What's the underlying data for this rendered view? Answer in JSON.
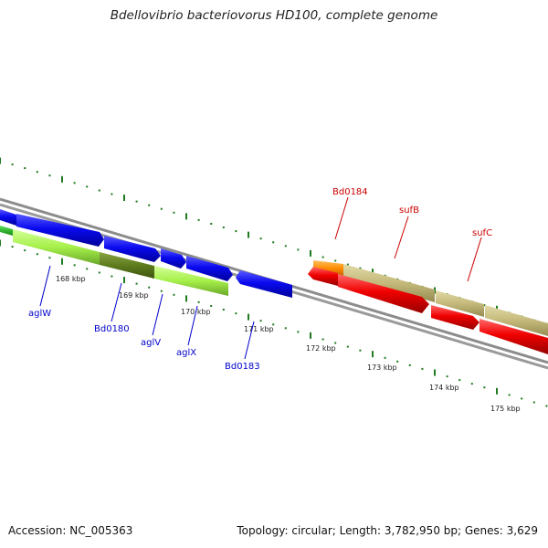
{
  "header": {
    "title": "Bdellovibrio bacteriovorus HD100, complete genome"
  },
  "footer": {
    "accession": "Accession: NC_005363",
    "genome_info": "Topology: circular; Length: 3,782,950 bp; Genes: 3,629"
  },
  "colors": {
    "backbone": "#8c8c8c",
    "ticks_major": "#1f7a1f",
    "forward_blue": "#0a0af0",
    "reverse_lime": "#a6f04a",
    "reverse_olive": "#5e7c1e",
    "orange": "#ff8c00",
    "tan": "#c4b97a",
    "red": "#f00000",
    "label_blue": "#0000cc",
    "label_red": "#cc0000"
  },
  "scale": {
    "unit": "kbp",
    "labels": [
      "168 kbp",
      "169 kbp",
      "170 kbp",
      "171 kbp",
      "172 kbp",
      "173 kbp",
      "174 kbp",
      "175 kbp"
    ]
  },
  "genes": {
    "labeled": [
      {
        "name": "aglW",
        "color": "blue"
      },
      {
        "name": "Bd0180",
        "color": "blue"
      },
      {
        "name": "aglV",
        "color": "blue"
      },
      {
        "name": "aglX",
        "color": "blue"
      },
      {
        "name": "Bd0183",
        "color": "blue"
      },
      {
        "name": "Bd0184",
        "color": "red"
      },
      {
        "name": "sufB",
        "color": "red"
      },
      {
        "name": "sufC",
        "color": "red"
      }
    ]
  }
}
